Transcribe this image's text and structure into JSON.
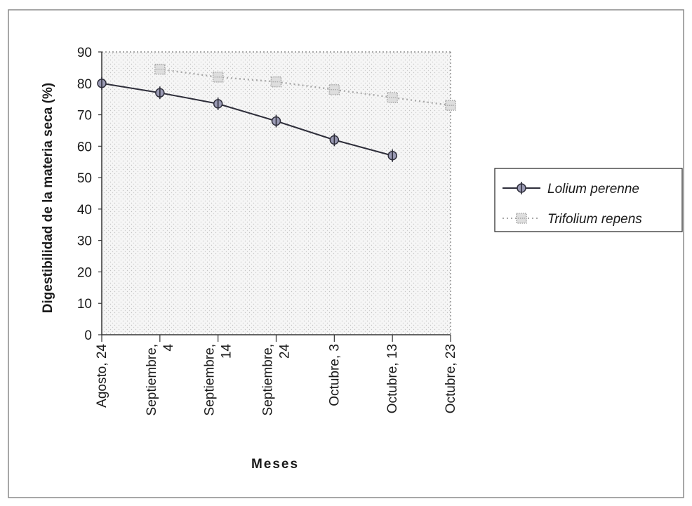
{
  "chart_data": {
    "type": "line",
    "xlabel": "Meses",
    "ylabel": "Digestibilidad de la materia seca (%)",
    "categories": [
      [
        "Agosto, 24"
      ],
      [
        "Septiembre,",
        "4"
      ],
      [
        "Septiembre,",
        "14"
      ],
      [
        "Septiembre,",
        "24"
      ],
      [
        "Octubre, 3"
      ],
      [
        "Octubre, 13"
      ],
      [
        "Octubre, 23"
      ]
    ],
    "y_ticks": [
      "0",
      "10",
      "20",
      "30",
      "40",
      "50",
      "60",
      "70",
      "80",
      "90"
    ],
    "ylim": [
      0,
      90
    ],
    "grid": false,
    "legend_position": "right",
    "series": [
      {
        "name": "Lolium perenne",
        "values": [
          80,
          77,
          73.5,
          68,
          62,
          57,
          null
        ],
        "color": "#2e2e3a",
        "line_style": "solid",
        "marker": "circle-cross"
      },
      {
        "name": "Trifolium repens",
        "values": [
          null,
          84.5,
          82,
          80.5,
          78,
          75.5,
          73
        ],
        "color": "#a8a8a8",
        "line_style": "dotted",
        "marker": "dotted-square"
      }
    ]
  }
}
